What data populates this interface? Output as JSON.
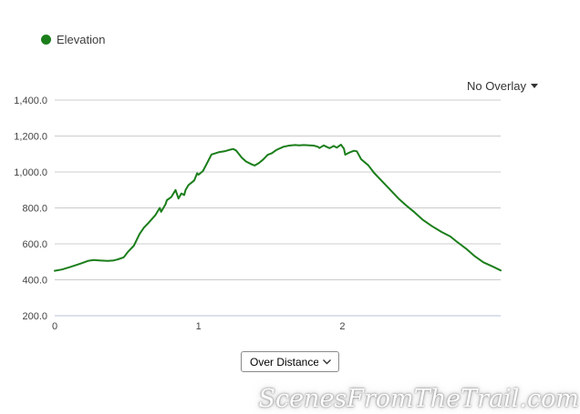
{
  "legend": {
    "label": "Elevation"
  },
  "overlay_dropdown": {
    "label": "No Overlay"
  },
  "controls": {
    "axis_select": {
      "value": "Over Distance"
    }
  },
  "watermark": "ScenesFromTheTrail.com",
  "colors": {
    "series_green": "#1b7e1b",
    "gridline": "#cccccc",
    "baseline": "#b9c0d8",
    "axis_text": "#444444"
  },
  "chart_data": {
    "type": "line",
    "title": "",
    "xlabel": "",
    "ylabel": "",
    "x_axis_mode": "Over Distance",
    "overlay": "No Overlay",
    "legend_position": "top-left",
    "grid": "horizontal",
    "xlim": [
      0,
      3.1
    ],
    "ylim": [
      200,
      1400
    ],
    "xticks": [
      0,
      1,
      2
    ],
    "xtick_labels": [
      "0",
      "1",
      "2"
    ],
    "yticks": [
      200,
      400,
      600,
      800,
      1000,
      1200,
      1400
    ],
    "ytick_labels": [
      "200.0",
      "400.0",
      "600.0",
      "800.0",
      "1,000.0",
      "1,200.0",
      "1,400.0"
    ],
    "series": [
      {
        "name": "Elevation",
        "color": "#1b7e1b",
        "x": [
          0.0,
          0.05,
          0.11,
          0.18,
          0.23,
          0.27,
          0.31,
          0.37,
          0.41,
          0.44,
          0.48,
          0.51,
          0.55,
          0.59,
          0.62,
          0.65,
          0.7,
          0.73,
          0.74,
          0.77,
          0.78,
          0.81,
          0.84,
          0.86,
          0.88,
          0.9,
          0.91,
          0.93,
          0.95,
          0.97,
          0.99,
          1.0,
          1.03,
          1.05,
          1.09,
          1.12,
          1.14,
          1.18,
          1.21,
          1.24,
          1.26,
          1.3,
          1.33,
          1.37,
          1.39,
          1.42,
          1.45,
          1.48,
          1.51,
          1.54,
          1.59,
          1.63,
          1.67,
          1.7,
          1.73,
          1.77,
          1.8,
          1.83,
          1.84,
          1.87,
          1.89,
          1.91,
          1.94,
          1.96,
          1.99,
          2.01,
          2.02,
          2.04,
          2.06,
          2.08,
          2.1,
          2.13,
          2.18,
          2.22,
          2.27,
          2.32,
          2.39,
          2.45,
          2.5,
          2.56,
          2.62,
          2.69,
          2.75,
          2.79,
          2.86,
          2.92,
          2.98,
          3.05,
          3.1
        ],
        "y": [
          450,
          457,
          472,
          490,
          505,
          510,
          508,
          505,
          508,
          514,
          525,
          556,
          590,
          655,
          690,
          715,
          760,
          800,
          778,
          820,
          843,
          860,
          900,
          852,
          880,
          872,
          900,
          927,
          940,
          953,
          993,
          985,
          1005,
          1035,
          1097,
          1105,
          1110,
          1115,
          1122,
          1128,
          1120,
          1080,
          1058,
          1042,
          1036,
          1050,
          1070,
          1095,
          1105,
          1122,
          1140,
          1147,
          1150,
          1148,
          1150,
          1148,
          1147,
          1140,
          1133,
          1148,
          1140,
          1132,
          1145,
          1135,
          1152,
          1130,
          1096,
          1105,
          1112,
          1118,
          1115,
          1071,
          1037,
          995,
          953,
          911,
          852,
          809,
          776,
          733,
          700,
          666,
          641,
          615,
          573,
          531,
          497,
          472,
          452
        ]
      }
    ]
  }
}
